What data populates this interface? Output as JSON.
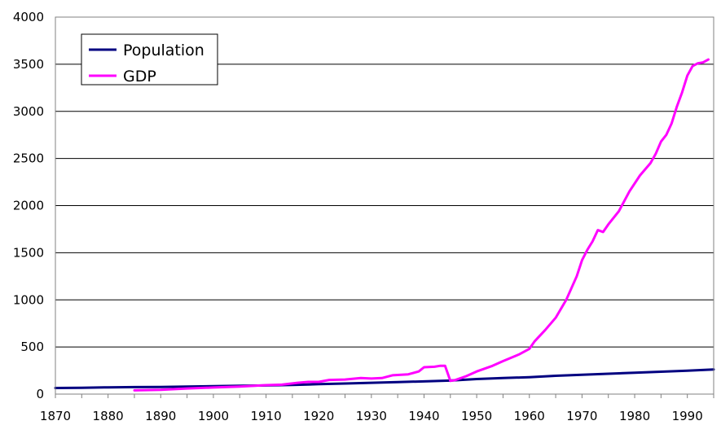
{
  "chart_data": {
    "type": "line",
    "title": "",
    "xlabel": "",
    "ylabel": "",
    "xlim": [
      1870,
      1995
    ],
    "ylim": [
      0,
      4000
    ],
    "x_ticks": [
      1870,
      1880,
      1890,
      1900,
      1910,
      1920,
      1930,
      1940,
      1950,
      1960,
      1970,
      1980,
      1990
    ],
    "y_ticks": [
      0,
      500,
      1000,
      1500,
      2000,
      2500,
      3000,
      3500,
      4000
    ],
    "grid": "horizontal",
    "legend_position": "top-left",
    "series": [
      {
        "name": "Population",
        "color": "#000080",
        "points": [
          [
            1870,
            65
          ],
          [
            1875,
            67
          ],
          [
            1880,
            72
          ],
          [
            1885,
            74
          ],
          [
            1890,
            76
          ],
          [
            1895,
            80
          ],
          [
            1900,
            84
          ],
          [
            1905,
            88
          ],
          [
            1910,
            92
          ],
          [
            1915,
            97
          ],
          [
            1920,
            105
          ],
          [
            1925,
            112
          ],
          [
            1930,
            120
          ],
          [
            1935,
            128
          ],
          [
            1940,
            135
          ],
          [
            1945,
            143
          ],
          [
            1950,
            160
          ],
          [
            1955,
            170
          ],
          [
            1960,
            180
          ],
          [
            1965,
            194
          ],
          [
            1970,
            205
          ],
          [
            1975,
            216
          ],
          [
            1980,
            227
          ],
          [
            1985,
            238
          ],
          [
            1990,
            249
          ],
          [
            1995,
            262
          ]
        ]
      },
      {
        "name": "GDP",
        "color": "#FF00FF",
        "points": [
          [
            1885,
            40
          ],
          [
            1890,
            45
          ],
          [
            1895,
            60
          ],
          [
            1900,
            70
          ],
          [
            1905,
            80
          ],
          [
            1910,
            95
          ],
          [
            1913,
            100
          ],
          [
            1916,
            120
          ],
          [
            1918,
            130
          ],
          [
            1920,
            130
          ],
          [
            1922,
            150
          ],
          [
            1925,
            155
          ],
          [
            1928,
            170
          ],
          [
            1930,
            165
          ],
          [
            1932,
            170
          ],
          [
            1934,
            200
          ],
          [
            1937,
            210
          ],
          [
            1939,
            240
          ],
          [
            1940,
            285
          ],
          [
            1942,
            290
          ],
          [
            1943,
            300
          ],
          [
            1944,
            300
          ],
          [
            1945,
            140
          ],
          [
            1946,
            150
          ],
          [
            1948,
            190
          ],
          [
            1950,
            240
          ],
          [
            1953,
            300
          ],
          [
            1955,
            350
          ],
          [
            1958,
            420
          ],
          [
            1960,
            480
          ],
          [
            1961,
            560
          ],
          [
            1963,
            680
          ],
          [
            1965,
            810
          ],
          [
            1967,
            1000
          ],
          [
            1969,
            1250
          ],
          [
            1970,
            1420
          ],
          [
            1971,
            1530
          ],
          [
            1972,
            1620
          ],
          [
            1973,
            1740
          ],
          [
            1974,
            1720
          ],
          [
            1975,
            1800
          ],
          [
            1977,
            1940
          ],
          [
            1979,
            2150
          ],
          [
            1981,
            2320
          ],
          [
            1983,
            2450
          ],
          [
            1984,
            2550
          ],
          [
            1985,
            2680
          ],
          [
            1986,
            2750
          ],
          [
            1987,
            2870
          ],
          [
            1988,
            3050
          ],
          [
            1989,
            3200
          ],
          [
            1990,
            3380
          ],
          [
            1991,
            3480
          ],
          [
            1992,
            3510
          ],
          [
            1993,
            3520
          ],
          [
            1994,
            3550
          ]
        ]
      }
    ]
  }
}
